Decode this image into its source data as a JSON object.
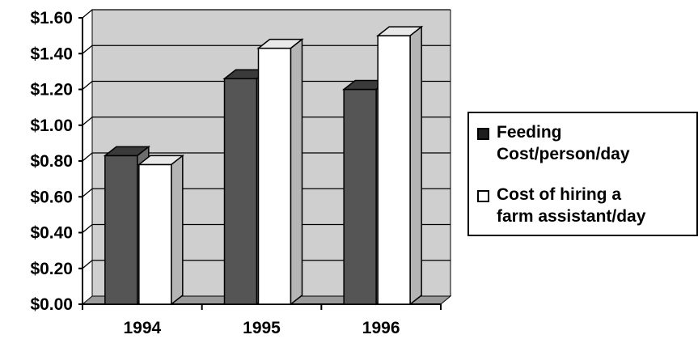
{
  "chart_data": {
    "type": "bar",
    "categories": [
      "1994",
      "1995",
      "1996"
    ],
    "series": [
      {
        "name": "Feeding Cost/person/day",
        "values": [
          0.83,
          1.26,
          1.2
        ],
        "color": "#555555"
      },
      {
        "name": "Cost of hiring a farm assistant/day",
        "values": [
          0.78,
          1.43,
          1.5
        ],
        "color": "#ffffff"
      }
    ],
    "ylim": [
      0,
      1.6
    ],
    "yticks": [
      "$0.00",
      "$0.20",
      "$0.40",
      "$0.60",
      "$0.80",
      "$1.00",
      "$1.20",
      "$1.40",
      "$1.60"
    ],
    "title": "",
    "xlabel": "",
    "ylabel": "",
    "grid": true,
    "legend_position": "right",
    "style": "3d-clustered-bar"
  },
  "legend": {
    "items": [
      {
        "line1": "Feeding",
        "line2": "Cost/person/day",
        "swatch": "#1e1e1e"
      },
      {
        "line1": "Cost of hiring a",
        "line2": "farm assistant/day",
        "swatch": "#ffffff"
      }
    ]
  }
}
